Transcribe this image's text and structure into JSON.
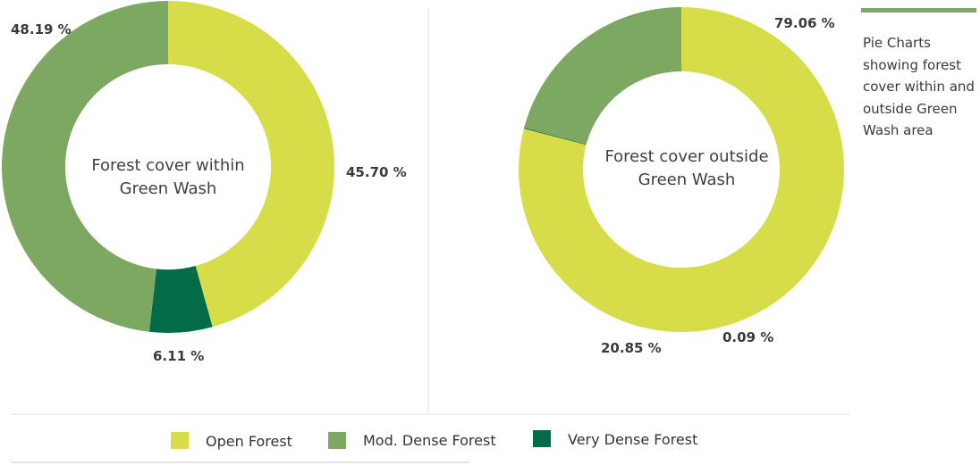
{
  "colors": {
    "open_forest": "#d7dd48",
    "mod_dense_forest": "#7ca862",
    "very_dense_forest": "#046b48"
  },
  "caption": {
    "text": "Pie Charts showing forest cover within and outside Green Wash area"
  },
  "legend": [
    {
      "label": "Open Forest",
      "color": "#d7dd48"
    },
    {
      "label": "Mod. Dense Forest",
      "color": "#7ca862"
    },
    {
      "label": "Very Dense Forest",
      "color": "#046b48"
    }
  ],
  "chart_data": [
    {
      "type": "pie",
      "variant": "donut",
      "center_label": [
        "Forest cover within",
        "Green Wash"
      ],
      "categories": [
        "Open Forest",
        "Very Dense Forest",
        "Mod. Dense Forest"
      ],
      "values": [
        45.7,
        6.11,
        48.19
      ],
      "value_labels": [
        "45.70 %",
        "6.11 %",
        "48.19 %"
      ],
      "start": "top, clockwise"
    },
    {
      "type": "pie",
      "variant": "donut",
      "center_label": [
        "Forest cover outside",
        "Green Wash"
      ],
      "categories": [
        "Open Forest",
        "Very Dense Forest",
        "Mod. Dense Forest"
      ],
      "values": [
        79.06,
        0.09,
        20.85
      ],
      "value_labels": [
        "79.06 %",
        "0.09 %",
        "20.85 %"
      ],
      "start": "top, clockwise"
    }
  ]
}
